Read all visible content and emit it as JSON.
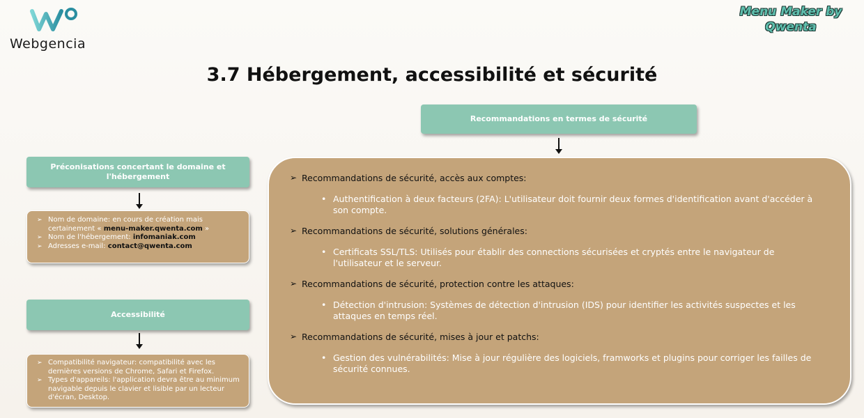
{
  "logo": {
    "brand": "Webgencia",
    "icon": "webgencia-w-logo"
  },
  "credit": {
    "line1": "Menu Maker by",
    "line2": "Qwenta"
  },
  "title": "3.7 Hébergement, accessibilité et sécurité",
  "left": {
    "domain_header": "Préconisations concertant le domaine et l'hébergement",
    "domain_items": [
      {
        "text": "Nom de domaine: en cours de création mais certainement « ",
        "bold": "menu-maker.qwenta.com",
        "after": " »"
      },
      {
        "text": "Nom de l'hébergement: ",
        "bold": "infomaniak.com",
        "after": ""
      },
      {
        "text": "Adresses e-mail: ",
        "bold": "contact@qwenta.com",
        "after": ""
      }
    ],
    "access_header": "Accessibilité",
    "access_items": [
      "Compatibilité navigateur: compatibilité avec les dernières versions de Chrome, Safari et Firefox.",
      "Types d'appareils: l'application devra être au minimum navigable depuis le clavier et lisible par un lecteur d'écran, Desktop."
    ]
  },
  "right": {
    "header": "Recommandations en termes de sécurité",
    "sections": [
      {
        "title": "Recommandations de sécurité, accès aux comptes:",
        "item": "Authentification à deux facteurs (2FA): L'utilisateur doit fournir deux formes d'identification avant d'accéder à son compte."
      },
      {
        "title": "Recommandations de sécurité, solutions générales:",
        "item": "Certificats SSL/TLS: Utilisés pour établir des connections sécurisées et cryptés entre le navigateur de l'utilisateur et le serveur."
      },
      {
        "title": "Recommandations de sécurité, protection contre les attaques:",
        "item": "Détection d'intrusion: Systèmes de détection d'intrusion (IDS) pour identifier les activités suspectes et les attaques en temps    réel."
      },
      {
        "title": "Recommandations de sécurité, mises à jour et patchs:",
        "item": "Gestion des vulnérabilités: Mise à jour régulière des logiciels, framworks et plugins pour corriger les failles de sécurité connues."
      }
    ]
  },
  "colors": {
    "teal": "#8cc7b2",
    "tan": "#c4a47a",
    "accent": "#5fbfae"
  }
}
